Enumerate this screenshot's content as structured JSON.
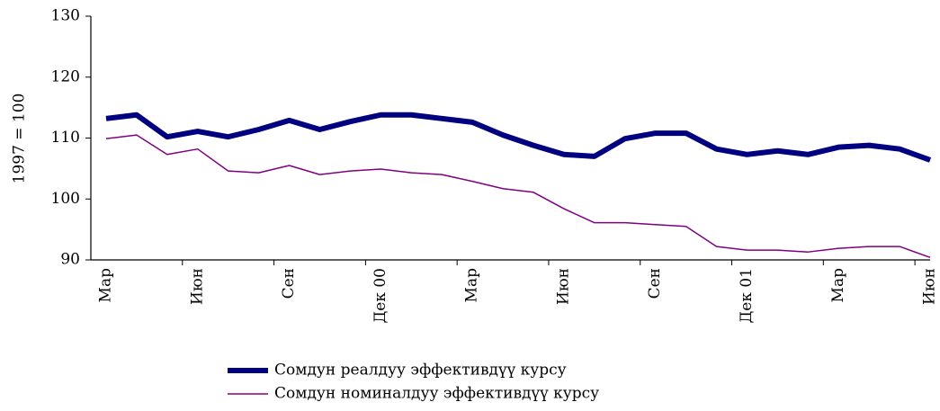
{
  "chart_data": {
    "type": "line",
    "ylabel": "1997 = 100",
    "categories": [
      "Мар",
      null,
      null,
      "Июн",
      null,
      null,
      "Сен",
      null,
      null,
      "Дек 00",
      null,
      null,
      "Мар",
      null,
      null,
      "Июн",
      null,
      null,
      "Сен",
      null,
      null,
      "Дек 01",
      null,
      null,
      "Мар",
      null,
      null,
      "Июн"
    ],
    "series": [
      {
        "name": "Сомдун реалдуу эффективдүү курсу",
        "color": "#000080",
        "values": [
          113.2,
          113.8,
          110.2,
          111.1,
          110.2,
          111.4,
          112.9,
          111.4,
          112.7,
          113.8,
          113.8,
          113.2,
          112.6,
          110.5,
          108.8,
          107.3,
          107.0,
          109.9,
          110.8,
          110.8,
          108.2,
          107.3,
          107.9,
          107.3,
          108.5,
          108.8,
          108.2,
          106.4
        ]
      },
      {
        "name": "Сомдун номиналдуу эффективдүү курсу",
        "color": "#800080",
        "values": [
          109.9,
          110.5,
          107.3,
          108.2,
          104.6,
          104.3,
          105.5,
          104.0,
          104.6,
          104.9,
          104.3,
          104.0,
          102.9,
          101.7,
          101.1,
          98.4,
          96.1,
          96.1,
          95.8,
          95.5,
          92.2,
          91.6,
          91.6,
          91.3,
          91.9,
          92.2,
          92.2,
          90.4
        ]
      }
    ],
    "ylim": [
      90,
      130
    ],
    "yticks": [
      90,
      100,
      110,
      120,
      130
    ],
    "grid": false
  }
}
